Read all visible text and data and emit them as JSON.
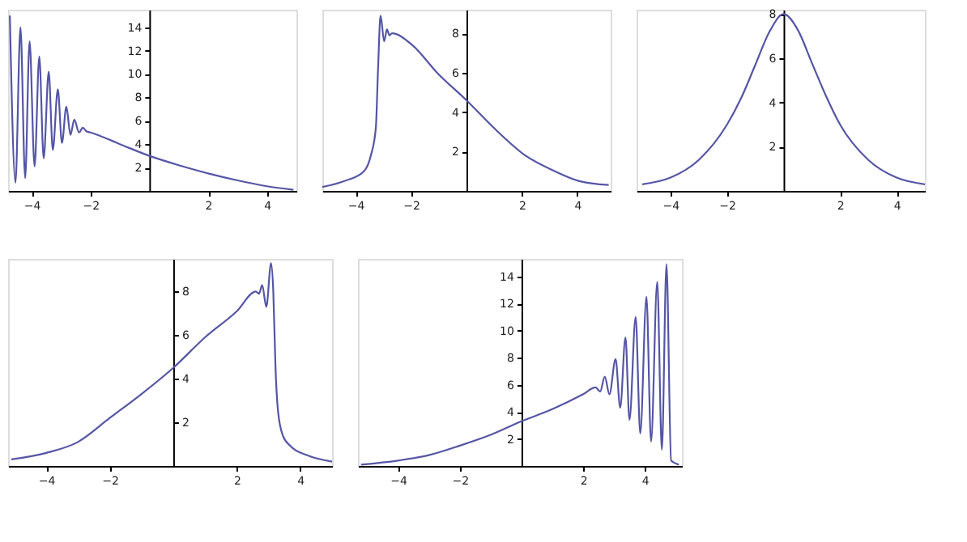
{
  "chart_data": [
    {
      "type": "line",
      "x": [
        -4.74,
        -4.55,
        -4.38,
        -4.22,
        -4.07,
        -3.9,
        -3.74,
        -3.59,
        -3.42,
        -3.28,
        -3.11,
        -2.97,
        -2.82,
        -2.68,
        -2.55,
        -2.39,
        -2.26,
        -2.14,
        -2.0,
        -1.0,
        0,
        1,
        2,
        3,
        4,
        4.9
      ],
      "xlim": [
        -4.8,
        5
      ],
      "ylim": [
        0,
        15.5
      ],
      "xticks": [
        -4,
        -2,
        2,
        4
      ],
      "yticks": [
        2,
        4,
        6,
        8,
        10,
        12,
        14
      ],
      "series": [
        {
          "color": "#5555a6",
          "values": [
            15.0,
            0.7,
            14.0,
            1.1,
            12.8,
            2.1,
            11.5,
            2.8,
            10.2,
            3.5,
            8.7,
            4.1,
            7.2,
            4.8,
            6.1,
            5.0,
            5.4,
            5.1,
            5.0,
            4.0,
            3.0,
            2.2,
            1.5,
            0.9,
            0.4,
            0.1
          ]
        }
      ]
    },
    {
      "type": "line",
      "x": [
        -5.2,
        -4.4,
        -3.7,
        -3.45,
        -3.27,
        -3.19,
        -3.1,
        -2.97,
        -2.87,
        -2.78,
        -2.69,
        -1.95,
        -1.06,
        0,
        1.06,
        2.12,
        3.19,
        4.07,
        5.13
      ],
      "xlim": [
        -5.2,
        5.2
      ],
      "ylim": [
        0,
        9.2
      ],
      "xticks": [
        -4,
        -2,
        2,
        4
      ],
      "yticks": [
        2,
        4,
        6,
        8
      ],
      "series": [
        {
          "color": "#5555a6",
          "values": [
            0.2,
            0.5,
            1.0,
            1.8,
            3.2,
            6.2,
            8.9,
            7.6,
            8.2,
            7.9,
            8.0,
            7.4,
            6.0,
            4.6,
            3.1,
            1.8,
            1.0,
            0.5,
            0.3
          ]
        }
      ]
    },
    {
      "type": "line",
      "x": [
        -5,
        -4,
        -3,
        -2,
        -1.5,
        -1,
        -0.5,
        0,
        0.5,
        1,
        1.5,
        2,
        3,
        4,
        5
      ],
      "xlim": [
        -5.2,
        5
      ],
      "ylim": [
        0,
        8.2
      ],
      "xticks": [
        -4,
        -2,
        2,
        4
      ],
      "yticks": [
        2,
        4,
        6,
        8
      ],
      "series": [
        {
          "color": "#5555a6",
          "values": [
            0.3,
            0.6,
            1.4,
            3.0,
            4.2,
            5.7,
            7.2,
            8.0,
            7.3,
            5.8,
            4.3,
            3.0,
            1.4,
            0.6,
            0.3
          ]
        }
      ]
    },
    {
      "type": "line",
      "x": [
        -5.1,
        -4,
        -3,
        -2,
        -1,
        0,
        1,
        2,
        2.6,
        2.7,
        2.8,
        2.93,
        3.08,
        3.15,
        3.22,
        3.3,
        3.45,
        3.7,
        4.2,
        5
      ],
      "xlim": [
        -5.2,
        5
      ],
      "ylim": [
        0,
        9.5
      ],
      "xticks": [
        -4,
        -2,
        2,
        4
      ],
      "yticks": [
        2,
        4,
        6,
        8
      ],
      "series": [
        {
          "color": "#5555a6",
          "values": [
            0.3,
            0.6,
            1.1,
            2.2,
            3.3,
            4.5,
            5.9,
            7.1,
            8.0,
            7.9,
            8.3,
            7.3,
            9.3,
            8.0,
            4.5,
            2.5,
            1.4,
            0.9,
            0.5,
            0.2
          ]
        }
      ]
    },
    {
      "type": "line",
      "x": [
        -5.2,
        -4,
        -3,
        -2,
        -1,
        0,
        1,
        2,
        2.4,
        2.55,
        2.7,
        2.85,
        3.05,
        3.2,
        3.37,
        3.5,
        3.7,
        3.85,
        4.05,
        4.2,
        4.4,
        4.55,
        4.7,
        4.85,
        5.1
      ],
      "xlim": [
        -5.3,
        5.2
      ],
      "ylim": [
        0,
        15.3
      ],
      "xticks": [
        -4,
        -2,
        2,
        4
      ],
      "yticks": [
        2,
        4,
        6,
        8,
        10,
        12,
        14
      ],
      "series": [
        {
          "color": "#5555a6",
          "values": [
            0.1,
            0.4,
            0.8,
            1.5,
            2.3,
            3.3,
            4.2,
            5.3,
            5.8,
            5.5,
            6.6,
            5.3,
            7.9,
            4.3,
            9.5,
            3.4,
            11.0,
            2.4,
            12.5,
            1.8,
            13.6,
            1.2,
            14.9,
            0.4,
            0.1
          ]
        }
      ]
    }
  ]
}
